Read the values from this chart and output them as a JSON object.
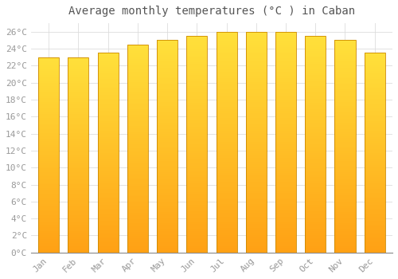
{
  "title": "Average monthly temperatures (°C ) in Caban",
  "months": [
    "Jan",
    "Feb",
    "Mar",
    "Apr",
    "May",
    "Jun",
    "Jul",
    "Aug",
    "Sep",
    "Oct",
    "Nov",
    "Dec"
  ],
  "temperatures": [
    23.0,
    23.0,
    23.5,
    24.5,
    25.0,
    25.5,
    26.0,
    26.0,
    26.0,
    25.5,
    25.0,
    23.5
  ],
  "bar_color_top": "#FFCC44",
  "bar_color_bottom": "#FFA020",
  "bar_edge_color": "#CC8800",
  "ylim": [
    0,
    27
  ],
  "yticks": [
    0,
    2,
    4,
    6,
    8,
    10,
    12,
    14,
    16,
    18,
    20,
    22,
    24,
    26
  ],
  "ytick_labels": [
    "0°C",
    "2°C",
    "4°C",
    "6°C",
    "8°C",
    "10°C",
    "12°C",
    "14°C",
    "16°C",
    "18°C",
    "20°C",
    "22°C",
    "24°C",
    "26°C"
  ],
  "background_color": "#FFFFFF",
  "grid_color": "#DDDDDD",
  "title_fontsize": 10,
  "tick_fontsize": 8,
  "font_family": "monospace",
  "tick_color": "#999999",
  "title_color": "#555555",
  "figsize": [
    5.0,
    3.5
  ],
  "dpi": 100
}
